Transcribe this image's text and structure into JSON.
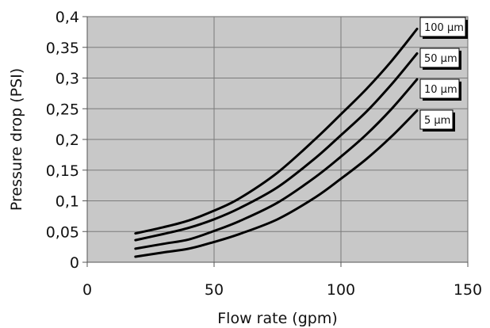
{
  "chart_data": {
    "type": "line",
    "title": "",
    "xlabel": "Flow rate (gpm)",
    "ylabel": "Pressure drop (PSI)",
    "xlim": [
      0,
      150
    ],
    "ylim": [
      0,
      0.4
    ],
    "x_ticks": [
      0,
      50,
      100,
      150
    ],
    "x_tick_labels": [
      "0",
      "50",
      "100",
      "150"
    ],
    "y_ticks": [
      0,
      0.05,
      0.1,
      0.15,
      0.2,
      0.25,
      0.3,
      0.35,
      0.4
    ],
    "y_tick_labels": [
      "0",
      "0,05",
      "0,1",
      "0,15",
      "0,2",
      "0,25",
      "0,3",
      "0,35",
      "0,4"
    ],
    "grid": true,
    "plot_background": "#c8c8c8",
    "line_color": "#000000",
    "legend_placement": "right, labels at line ends",
    "series": [
      {
        "name": "100 µm",
        "x": [
          19,
          30,
          40,
          50,
          60,
          75,
          90,
          100,
          110,
          120,
          130
        ],
        "y": [
          0.047,
          0.057,
          0.068,
          0.084,
          0.104,
          0.146,
          0.201,
          0.241,
          0.282,
          0.328,
          0.38
        ]
      },
      {
        "name": "50 µm",
        "x": [
          19,
          30,
          40,
          50,
          60,
          75,
          90,
          100,
          110,
          120,
          130
        ],
        "y": [
          0.036,
          0.046,
          0.056,
          0.07,
          0.088,
          0.122,
          0.17,
          0.207,
          0.245,
          0.29,
          0.34
        ]
      },
      {
        "name": "10 µm",
        "x": [
          19,
          30,
          40,
          50,
          60,
          75,
          90,
          100,
          110,
          120,
          130
        ],
        "y": [
          0.022,
          0.03,
          0.037,
          0.051,
          0.067,
          0.097,
          0.139,
          0.172,
          0.208,
          0.25,
          0.298
        ]
      },
      {
        "name": "5 µm",
        "x": [
          19,
          30,
          40,
          50,
          60,
          75,
          90,
          100,
          110,
          120,
          130
        ],
        "y": [
          0.009,
          0.016,
          0.022,
          0.033,
          0.046,
          0.07,
          0.106,
          0.136,
          0.168,
          0.205,
          0.247
        ]
      }
    ]
  }
}
